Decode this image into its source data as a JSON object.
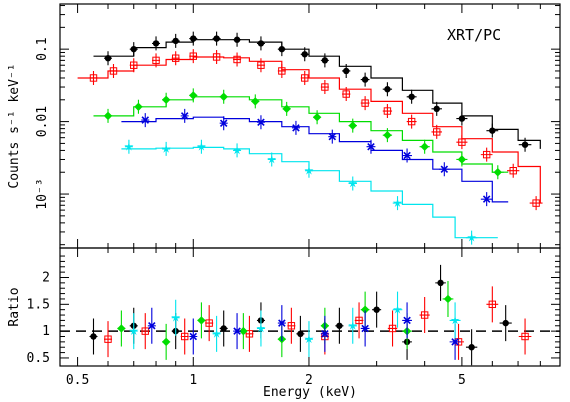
{
  "chart_data": [
    {
      "type": "scatter",
      "annotation": "XRT/PC",
      "xlabel": "",
      "ylabel": "Counts s⁻¹ keV⁻¹",
      "xscale": "log",
      "yscale": "log",
      "xlim": [
        0.45,
        9.0
      ],
      "ylim": [
        0.00018,
        0.42
      ],
      "yticks": [
        {
          "value": 0.1,
          "label": "0.1"
        },
        {
          "value": 0.01,
          "label": "0.01"
        },
        {
          "value": 0.001,
          "label": "10⁻³"
        }
      ],
      "colors": [
        "#000000",
        "#ff0000",
        "#00dd00",
        "#0000dd",
        "#00e5ee"
      ],
      "series": [
        {
          "color": "#000000",
          "marker": "filled-circle",
          "points": [
            [
              0.6,
              0.075
            ],
            [
              0.7,
              0.1
            ],
            [
              0.8,
              0.12
            ],
            [
              0.9,
              0.13
            ],
            [
              1.0,
              0.14
            ],
            [
              1.15,
              0.14
            ],
            [
              1.3,
              0.135
            ],
            [
              1.5,
              0.12
            ],
            [
              1.7,
              0.1
            ],
            [
              1.95,
              0.085
            ],
            [
              2.2,
              0.07
            ],
            [
              2.5,
              0.05
            ],
            [
              2.8,
              0.038
            ],
            [
              3.2,
              0.028
            ],
            [
              3.7,
              0.022
            ],
            [
              4.3,
              0.015
            ],
            [
              5.0,
              0.011
            ],
            [
              6.0,
              0.0075
            ],
            [
              7.3,
              0.0048
            ]
          ],
          "model": [
            [
              0.55,
              0.08
            ],
            [
              0.7,
              0.105
            ],
            [
              0.85,
              0.125
            ],
            [
              1.0,
              0.135
            ],
            [
              1.2,
              0.135
            ],
            [
              1.4,
              0.125
            ],
            [
              1.7,
              0.1
            ],
            [
              2.0,
              0.08
            ],
            [
              2.4,
              0.058
            ],
            [
              2.9,
              0.04
            ],
            [
              3.5,
              0.027
            ],
            [
              4.2,
              0.018
            ],
            [
              5.0,
              0.012
            ],
            [
              6.0,
              0.0078
            ],
            [
              7.0,
              0.0055
            ],
            [
              8.0,
              0.0042
            ]
          ]
        },
        {
          "color": "#ff0000",
          "marker": "open-square",
          "points": [
            [
              0.55,
              0.04
            ],
            [
              0.62,
              0.05
            ],
            [
              0.7,
              0.06
            ],
            [
              0.8,
              0.07
            ],
            [
              0.9,
              0.075
            ],
            [
              1.0,
              0.08
            ],
            [
              1.15,
              0.078
            ],
            [
              1.3,
              0.072
            ],
            [
              1.5,
              0.06
            ],
            [
              1.7,
              0.05
            ],
            [
              1.95,
              0.04
            ],
            [
              2.2,
              0.03
            ],
            [
              2.5,
              0.024
            ],
            [
              2.8,
              0.018
            ],
            [
              3.2,
              0.014
            ],
            [
              3.7,
              0.01
            ],
            [
              4.3,
              0.0072
            ],
            [
              5.0,
              0.0052
            ],
            [
              5.8,
              0.0035
            ],
            [
              6.8,
              0.0021
            ],
            [
              7.8,
              0.00075
            ]
          ],
          "model": [
            [
              0.5,
              0.04
            ],
            [
              0.6,
              0.05
            ],
            [
              0.7,
              0.06
            ],
            [
              0.85,
              0.072
            ],
            [
              1.0,
              0.078
            ],
            [
              1.2,
              0.076
            ],
            [
              1.4,
              0.068
            ],
            [
              1.7,
              0.052
            ],
            [
              2.0,
              0.04
            ],
            [
              2.4,
              0.028
            ],
            [
              2.9,
              0.019
            ],
            [
              3.5,
              0.013
            ],
            [
              4.2,
              0.0085
            ],
            [
              5.0,
              0.0058
            ],
            [
              6.0,
              0.0038
            ],
            [
              7.0,
              0.0024
            ],
            [
              8.0,
              0.00075
            ]
          ]
        },
        {
          "color": "#00dd00",
          "marker": "filled-diamond",
          "points": [
            [
              0.6,
              0.012
            ],
            [
              0.72,
              0.016
            ],
            [
              0.85,
              0.02
            ],
            [
              1.0,
              0.023
            ],
            [
              1.2,
              0.022
            ],
            [
              1.45,
              0.019
            ],
            [
              1.75,
              0.015
            ],
            [
              2.1,
              0.0115
            ],
            [
              2.6,
              0.0088
            ],
            [
              3.2,
              0.0065
            ],
            [
              4.0,
              0.0045
            ],
            [
              5.0,
              0.003
            ],
            [
              6.2,
              0.002
            ]
          ],
          "model": [
            [
              0.55,
              0.012
            ],
            [
              0.7,
              0.016
            ],
            [
              0.85,
              0.02
            ],
            [
              1.0,
              0.022
            ],
            [
              1.2,
              0.022
            ],
            [
              1.4,
              0.02
            ],
            [
              1.7,
              0.016
            ],
            [
              2.0,
              0.013
            ],
            [
              2.4,
              0.01
            ],
            [
              2.9,
              0.0075
            ],
            [
              3.5,
              0.0055
            ],
            [
              4.2,
              0.0038
            ],
            [
              5.0,
              0.0026
            ],
            [
              6.0,
              0.002
            ],
            [
              6.6,
              0.002
            ]
          ]
        },
        {
          "color": "#0000dd",
          "marker": "cross",
          "points": [
            [
              0.75,
              0.0105
            ],
            [
              0.95,
              0.012
            ],
            [
              1.2,
              0.0095
            ],
            [
              1.5,
              0.0098
            ],
            [
              1.85,
              0.0082
            ],
            [
              2.3,
              0.0062
            ],
            [
              2.9,
              0.0045
            ],
            [
              3.6,
              0.0034
            ],
            [
              4.5,
              0.0022
            ],
            [
              5.8,
              0.00085
            ]
          ],
          "model": [
            [
              0.65,
              0.01
            ],
            [
              0.8,
              0.011
            ],
            [
              1.0,
              0.0115
            ],
            [
              1.2,
              0.011
            ],
            [
              1.4,
              0.01
            ],
            [
              1.7,
              0.0085
            ],
            [
              2.0,
              0.0068
            ],
            [
              2.4,
              0.0053
            ],
            [
              2.9,
              0.004
            ],
            [
              3.5,
              0.003
            ],
            [
              4.2,
              0.0022
            ],
            [
              5.0,
              0.0015
            ],
            [
              6.0,
              0.00078
            ],
            [
              6.6,
              0.00078
            ]
          ]
        },
        {
          "color": "#00e5ee",
          "marker": "filled-star",
          "points": [
            [
              0.68,
              0.0045
            ],
            [
              0.85,
              0.0042
            ],
            [
              1.05,
              0.0045
            ],
            [
              1.3,
              0.004
            ],
            [
              1.6,
              0.003
            ],
            [
              2.0,
              0.0021
            ],
            [
              2.6,
              0.0014
            ],
            [
              3.4,
              0.00075
            ],
            [
              5.3,
              0.00025
            ]
          ],
          "model": [
            [
              0.65,
              0.0042
            ],
            [
              0.8,
              0.0043
            ],
            [
              1.0,
              0.0044
            ],
            [
              1.2,
              0.0042
            ],
            [
              1.4,
              0.0036
            ],
            [
              1.7,
              0.0028
            ],
            [
              2.0,
              0.0021
            ],
            [
              2.4,
              0.0015
            ],
            [
              2.9,
              0.0011
            ],
            [
              3.5,
              0.00072
            ],
            [
              4.2,
              0.00048
            ],
            [
              4.8,
              0.00025
            ],
            [
              6.2,
              0.00025
            ]
          ]
        }
      ]
    },
    {
      "type": "scatter",
      "xlabel": "Energy (keV)",
      "ylabel": "Ratio",
      "xscale": "log",
      "xlim": [
        0.45,
        9.0
      ],
      "ylim": [
        0.35,
        2.55
      ],
      "yticks": [
        {
          "value": 0.5,
          "label": "0.5"
        },
        {
          "value": 1,
          "label": "1"
        },
        {
          "value": 1.5,
          "label": "1.5"
        },
        {
          "value": 2,
          "label": "2"
        }
      ],
      "xticks": [
        {
          "value": 0.5,
          "label": "0.5"
        },
        {
          "value": 1,
          "label": "1"
        },
        {
          "value": 2,
          "label": "2"
        },
        {
          "value": 5,
          "label": "5"
        }
      ],
      "reference_line": 1,
      "series": [
        {
          "color": "#000000",
          "marker": "filled-circle",
          "points": [
            [
              0.55,
              0.9
            ],
            [
              0.7,
              1.1
            ],
            [
              0.9,
              1.0
            ],
            [
              1.2,
              1.05
            ],
            [
              1.5,
              1.2
            ],
            [
              1.9,
              0.95
            ],
            [
              2.4,
              1.1
            ],
            [
              3.0,
              1.4
            ],
            [
              3.6,
              0.8
            ],
            [
              4.4,
              1.9
            ],
            [
              5.3,
              0.7
            ],
            [
              6.5,
              1.15
            ]
          ]
        },
        {
          "color": "#ff0000",
          "marker": "open-square",
          "points": [
            [
              0.6,
              0.85
            ],
            [
              0.75,
              1.0
            ],
            [
              0.95,
              0.9
            ],
            [
              1.1,
              1.15
            ],
            [
              1.4,
              0.95
            ],
            [
              1.8,
              1.1
            ],
            [
              2.2,
              0.9
            ],
            [
              2.7,
              1.2
            ],
            [
              3.3,
              1.05
            ],
            [
              4.0,
              1.3
            ],
            [
              4.9,
              0.8
            ],
            [
              6.0,
              1.5
            ],
            [
              7.3,
              0.9
            ]
          ]
        },
        {
          "color": "#00dd00",
          "marker": "filled-diamond",
          "points": [
            [
              0.65,
              1.05
            ],
            [
              0.85,
              0.8
            ],
            [
              1.05,
              1.2
            ],
            [
              1.35,
              1.0
            ],
            [
              1.7,
              0.85
            ],
            [
              2.2,
              1.1
            ],
            [
              2.8,
              1.4
            ],
            [
              3.6,
              1.0
            ],
            [
              4.6,
              1.6
            ]
          ]
        },
        {
          "color": "#0000dd",
          "marker": "cross",
          "points": [
            [
              0.78,
              1.1
            ],
            [
              1.0,
              0.9
            ],
            [
              1.3,
              1.0
            ],
            [
              1.7,
              1.15
            ],
            [
              2.2,
              0.95
            ],
            [
              2.8,
              1.05
            ],
            [
              3.6,
              1.2
            ],
            [
              4.8,
              0.8
            ]
          ]
        },
        {
          "color": "#00e5ee",
          "marker": "filled-star",
          "points": [
            [
              0.7,
              1.0
            ],
            [
              0.9,
              1.25
            ],
            [
              1.15,
              0.95
            ],
            [
              1.5,
              1.05
            ],
            [
              2.0,
              0.85
            ],
            [
              2.6,
              1.1
            ],
            [
              3.4,
              1.4
            ],
            [
              4.8,
              1.2
            ]
          ]
        }
      ]
    }
  ]
}
